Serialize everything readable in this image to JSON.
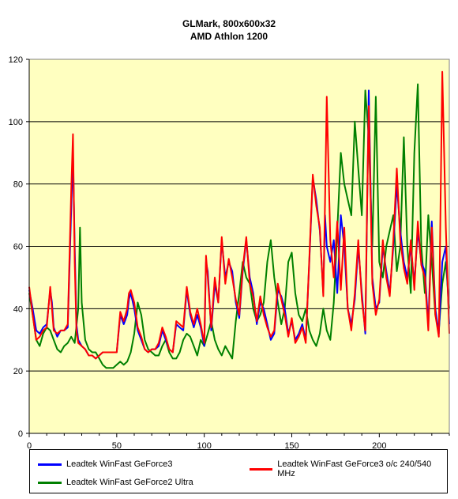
{
  "chart_data": {
    "type": "line",
    "title_lines": [
      "GLMark,  800x600x32",
      "AMD Athlon 1200"
    ],
    "xlim": [
      0,
      240
    ],
    "ylim": [
      0,
      120
    ],
    "x_ticks": [
      0,
      50,
      100,
      150,
      200
    ],
    "y_ticks": [
      0,
      20,
      40,
      60,
      80,
      100,
      120
    ],
    "grid": "horizontal",
    "plot_background": "#ffffc0",
    "legend_position": "bottom",
    "series": [
      {
        "name": "Leadtek WinFast GeForce3",
        "color": "#0000ff",
        "x": [
          0,
          2,
          4,
          6,
          8,
          10,
          12,
          13,
          14,
          16,
          18,
          20,
          22,
          24,
          25,
          26,
          27,
          28,
          30,
          32,
          34,
          36,
          38,
          40,
          42,
          44,
          46,
          48,
          50,
          52,
          54,
          56,
          57,
          58,
          60,
          62,
          64,
          66,
          68,
          70,
          72,
          74,
          76,
          78,
          80,
          82,
          84,
          86,
          88,
          90,
          92,
          94,
          96,
          98,
          100,
          101,
          102,
          104,
          106,
          108,
          110,
          112,
          114,
          116,
          118,
          120,
          122,
          124,
          126,
          128,
          130,
          132,
          134,
          136,
          138,
          140,
          142,
          144,
          146,
          148,
          150,
          152,
          154,
          156,
          158,
          160,
          162,
          164,
          166,
          168,
          169,
          170,
          172,
          174,
          176,
          178,
          180,
          182,
          184,
          186,
          188,
          190,
          192,
          193,
          194,
          196,
          198,
          200,
          202,
          204,
          206,
          208,
          210,
          212,
          214,
          216,
          218,
          220,
          222,
          224,
          226,
          228,
          230,
          232,
          234,
          236,
          238,
          240
        ],
        "values": [
          46,
          40,
          33,
          32,
          34,
          35,
          46,
          42,
          34,
          31,
          33,
          33,
          34,
          72,
          90,
          60,
          35,
          30,
          28,
          27,
          25,
          25,
          24,
          25,
          26,
          26,
          26,
          26,
          26,
          38,
          35,
          38,
          43,
          45,
          40,
          33,
          30,
          27,
          26,
          27,
          27,
          28,
          33,
          30,
          27,
          26,
          35,
          34,
          33,
          46,
          38,
          34,
          38,
          34,
          28,
          55,
          52,
          33,
          48,
          42,
          62,
          50,
          55,
          52,
          42,
          37,
          52,
          62,
          50,
          45,
          35,
          42,
          40,
          35,
          30,
          32,
          46,
          44,
          40,
          32,
          36,
          30,
          32,
          35,
          30,
          55,
          82,
          75,
          65,
          45,
          70,
          60,
          55,
          62,
          45,
          70,
          60,
          40,
          35,
          43,
          60,
          45,
          32,
          70,
          110,
          50,
          40,
          42,
          60,
          52,
          45,
          60,
          80,
          65,
          55,
          50,
          60,
          48,
          65,
          55,
          52,
          35,
          68,
          40,
          32,
          55,
          60,
          35
        ]
      },
      {
        "name": "Leadtek WinFast GeForce3 o/c 240/540 MHz",
        "color": "#ff0000",
        "x": [
          0,
          2,
          4,
          6,
          8,
          10,
          12,
          13,
          14,
          16,
          18,
          20,
          22,
          24,
          25,
          26,
          27,
          28,
          30,
          32,
          34,
          36,
          38,
          40,
          42,
          44,
          46,
          48,
          50,
          52,
          54,
          56,
          57,
          58,
          60,
          62,
          64,
          66,
          68,
          70,
          72,
          74,
          76,
          78,
          80,
          82,
          84,
          86,
          88,
          90,
          92,
          94,
          96,
          98,
          100,
          101,
          102,
          104,
          106,
          108,
          110,
          112,
          114,
          116,
          118,
          120,
          122,
          124,
          126,
          128,
          130,
          132,
          134,
          136,
          138,
          140,
          142,
          144,
          146,
          148,
          150,
          152,
          154,
          156,
          158,
          160,
          162,
          164,
          166,
          168,
          169,
          170,
          172,
          174,
          176,
          178,
          180,
          182,
          184,
          186,
          188,
          190,
          192,
          193,
          194,
          196,
          198,
          200,
          202,
          204,
          206,
          208,
          210,
          212,
          214,
          216,
          218,
          220,
          222,
          224,
          226,
          228,
          230,
          232,
          234,
          236,
          238,
          240
        ],
        "values": [
          47,
          38,
          30,
          31,
          33,
          34,
          47,
          40,
          33,
          32,
          33,
          33,
          35,
          78,
          96,
          55,
          33,
          29,
          28,
          27,
          25,
          25,
          24,
          25,
          26,
          26,
          26,
          26,
          26,
          39,
          36,
          40,
          45,
          46,
          42,
          34,
          31,
          27,
          26,
          27,
          27,
          29,
          34,
          31,
          27,
          26,
          36,
          35,
          34,
          47,
          39,
          35,
          40,
          35,
          29,
          57,
          50,
          34,
          50,
          42,
          63,
          48,
          56,
          50,
          43,
          38,
          53,
          63,
          48,
          44,
          36,
          44,
          38,
          34,
          31,
          33,
          48,
          43,
          38,
          31,
          37,
          29,
          31,
          34,
          29,
          56,
          83,
          73,
          66,
          44,
          74,
          108,
          62,
          50,
          68,
          46,
          66,
          40,
          33,
          45,
          62,
          43,
          33,
          72,
          105,
          48,
          38,
          43,
          62,
          50,
          44,
          62,
          85,
          62,
          53,
          48,
          62,
          46,
          68,
          54,
          50,
          33,
          66,
          38,
          31,
          116,
          66,
          32
        ]
      },
      {
        "name": "Leadtek WinFast GeForce2 Ultra",
        "color": "#008000",
        "x": [
          0,
          2,
          4,
          6,
          8,
          10,
          12,
          14,
          16,
          18,
          20,
          22,
          24,
          26,
          28,
          29,
          30,
          32,
          34,
          36,
          38,
          40,
          42,
          44,
          46,
          48,
          50,
          52,
          54,
          56,
          58,
          60,
          62,
          64,
          66,
          68,
          70,
          72,
          74,
          76,
          78,
          80,
          82,
          84,
          86,
          88,
          90,
          92,
          94,
          96,
          98,
          100,
          102,
          104,
          106,
          108,
          110,
          112,
          114,
          116,
          118,
          120,
          122,
          124,
          126,
          128,
          130,
          132,
          134,
          136,
          138,
          140,
          142,
          144,
          146,
          148,
          150,
          152,
          154,
          156,
          158,
          160,
          162,
          164,
          166,
          168,
          170,
          172,
          174,
          176,
          178,
          180,
          182,
          184,
          186,
          188,
          190,
          192,
          194,
          196,
          198,
          200,
          202,
          204,
          206,
          208,
          210,
          212,
          214,
          216,
          218,
          220,
          222,
          224,
          226,
          228,
          230,
          232,
          234,
          236,
          238,
          240
        ],
        "values": [
          45,
          38,
          30,
          28,
          32,
          34,
          33,
          30,
          27,
          26,
          28,
          29,
          31,
          29,
          40,
          66,
          42,
          30,
          27,
          26,
          26,
          24,
          22,
          21,
          21,
          21,
          22,
          23,
          22,
          23,
          26,
          32,
          42,
          38,
          30,
          27,
          26,
          25,
          25,
          28,
          30,
          26,
          24,
          24,
          26,
          30,
          32,
          31,
          28,
          25,
          30,
          28,
          32,
          36,
          30,
          27,
          25,
          28,
          26,
          24,
          36,
          45,
          55,
          50,
          48,
          40,
          36,
          38,
          42,
          55,
          62,
          50,
          42,
          35,
          40,
          55,
          58,
          45,
          38,
          36,
          40,
          33,
          30,
          28,
          32,
          40,
          33,
          30,
          42,
          65,
          90,
          80,
          75,
          70,
          100,
          85,
          70,
          110,
          95,
          60,
          108,
          55,
          50,
          60,
          65,
          70,
          52,
          60,
          95,
          60,
          45,
          90,
          112,
          60,
          45,
          70,
          55,
          38,
          33,
          48,
          55,
          40
        ]
      }
    ]
  }
}
